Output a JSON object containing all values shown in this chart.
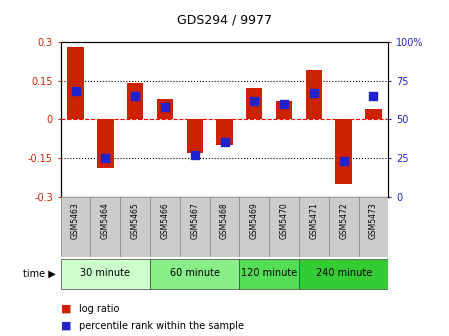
{
  "title": "GDS294 / 9977",
  "samples": [
    "GSM5463",
    "GSM5464",
    "GSM5465",
    "GSM5466",
    "GSM5467",
    "GSM5468",
    "GSM5469",
    "GSM5470",
    "GSM5471",
    "GSM5472",
    "GSM5473"
  ],
  "log_ratio": [
    0.28,
    -0.19,
    0.14,
    0.08,
    -0.13,
    -0.1,
    0.12,
    0.07,
    0.19,
    -0.25,
    0.04
  ],
  "percentile": [
    68,
    25,
    65,
    58,
    27,
    35,
    62,
    60,
    67,
    23,
    65
  ],
  "bar_color": "#cc2200",
  "dot_color": "#2222cc",
  "ylim": [
    -0.3,
    0.3
  ],
  "yticks_left": [
    -0.3,
    -0.15,
    0,
    0.15,
    0.3
  ],
  "yticks_right": [
    0,
    25,
    50,
    75,
    100
  ],
  "groups": [
    {
      "label": "30 minute",
      "start": 0,
      "end": 3,
      "color": "#ccffcc"
    },
    {
      "label": "60 minute",
      "start": 3,
      "end": 6,
      "color": "#88ee88"
    },
    {
      "label": "120 minute",
      "start": 6,
      "end": 8,
      "color": "#55dd55"
    },
    {
      "label": "240 minute",
      "start": 8,
      "end": 11,
      "color": "#33cc33"
    }
  ],
  "time_label": "time ▶",
  "legend_log": "log ratio",
  "legend_pct": "percentile rank within the sample",
  "bar_width": 0.55,
  "dot_size": 30,
  "background_color": "#ffffff",
  "tick_label_color_left": "#cc2200",
  "tick_label_color_right": "#2222cc",
  "sample_bg": "#cccccc",
  "sample_border": "#888888"
}
